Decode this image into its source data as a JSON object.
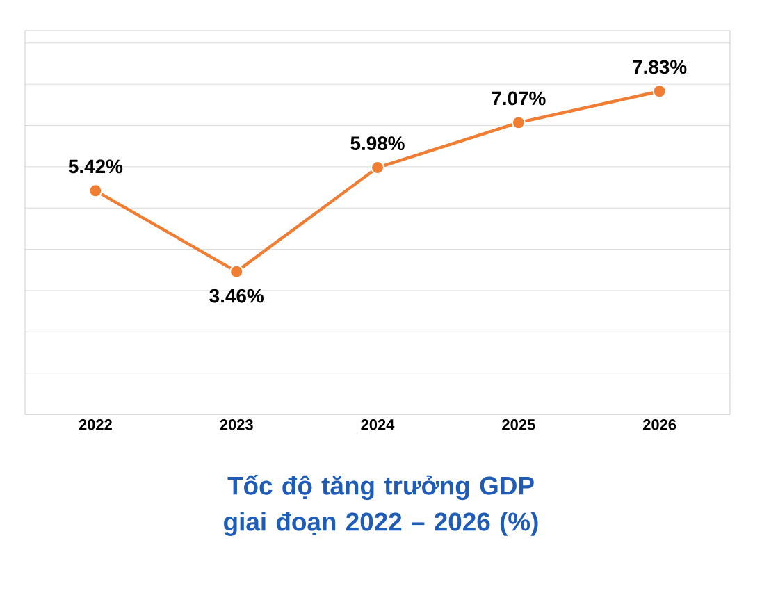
{
  "chart_data": {
    "type": "line",
    "title": "Tốc độ tăng trưởng GDP giai đoạn 2022 – 2026 (%)",
    "categories": [
      "2022",
      "2023",
      "2024",
      "2025",
      "2026"
    ],
    "values": [
      5.42,
      3.46,
      5.98,
      7.07,
      7.83
    ],
    "value_labels": [
      "5.42%",
      "3.46%",
      "5.98%",
      "7.07%",
      "7.83%"
    ],
    "color": "#f07d32",
    "marker": "circle",
    "line_style": "solid",
    "grid": "y",
    "tick_labels": "x",
    "ylim": [
      0,
      9.3
    ],
    "yticks": [
      {
        "value": 0,
        "label": null
      },
      {
        "value": 1,
        "label": null
      },
      {
        "value": 2,
        "label": null
      },
      {
        "value": 3,
        "label": null
      },
      {
        "value": 4,
        "label": null
      },
      {
        "value": 5,
        "label": null
      },
      {
        "value": 6,
        "label": null
      },
      {
        "value": 7,
        "label": null
      },
      {
        "value": 8,
        "label": null
      },
      {
        "value": 9,
        "label": null
      }
    ]
  }
}
